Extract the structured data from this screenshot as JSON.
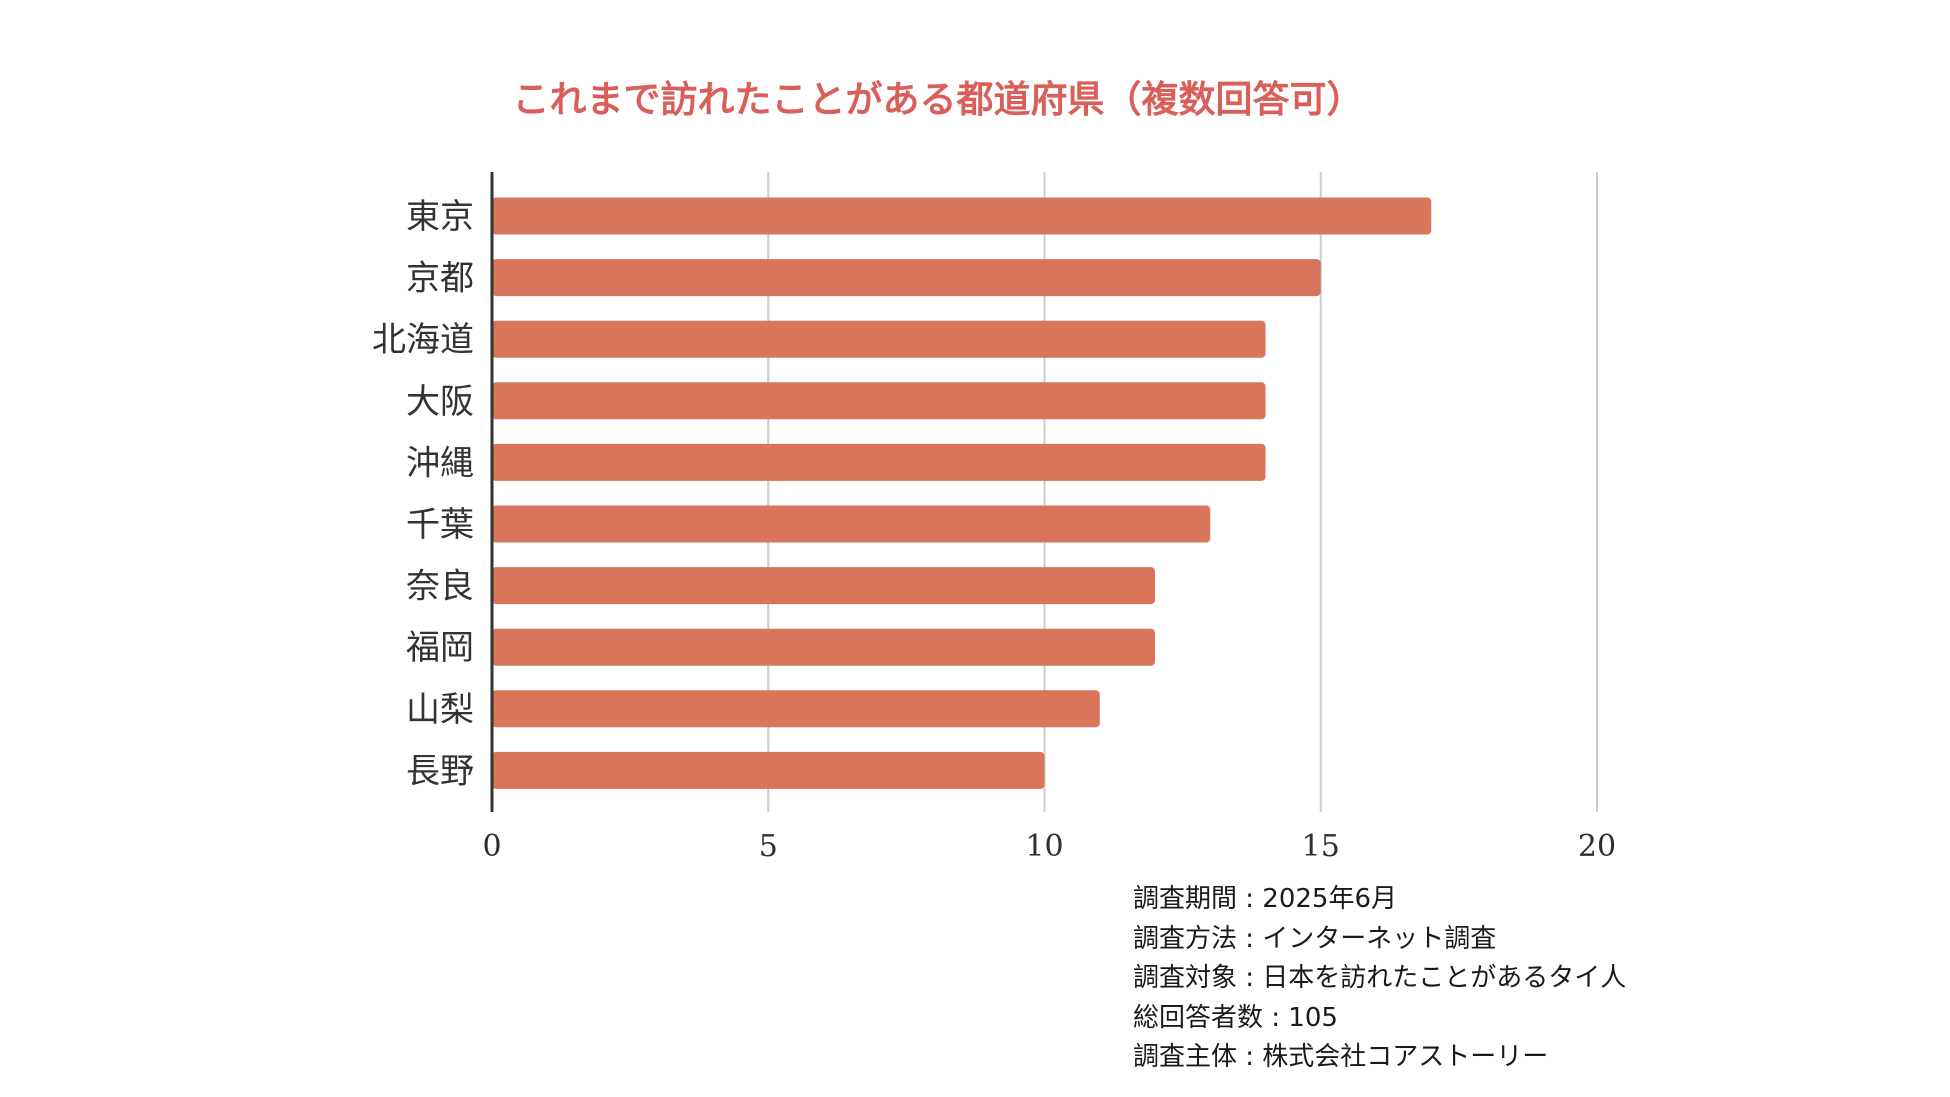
{
  "chart_data": {
    "type": "bar",
    "orientation": "horizontal",
    "title": "これまで訪れたことがある都道府県（複数回答可）",
    "categories": [
      "東京",
      "京都",
      "北海道",
      "大阪",
      "沖縄",
      "千葉",
      "奈良",
      "福岡",
      "山梨",
      "長野"
    ],
    "values": [
      17,
      15,
      14,
      14,
      14,
      13,
      12,
      12,
      11,
      10
    ],
    "xlim": [
      0,
      20
    ],
    "xticks": [
      "0",
      "5",
      "10",
      "15",
      "20"
    ],
    "xlabel": "",
    "ylabel": "",
    "grid": true,
    "legend": "none"
  },
  "colors": {
    "title": "#d9605a",
    "bar": "#d8755a",
    "grid": "#cccccc",
    "axis": "#333333"
  },
  "notes": [
    "調査期間 : 2025年6月",
    "調査方法 :  インターネット調査",
    "調査対象 : 日本を訪れたことがあるタイ人",
    "総回答者数 : 105",
    "調査主体 : 株式会社コアストーリー"
  ]
}
